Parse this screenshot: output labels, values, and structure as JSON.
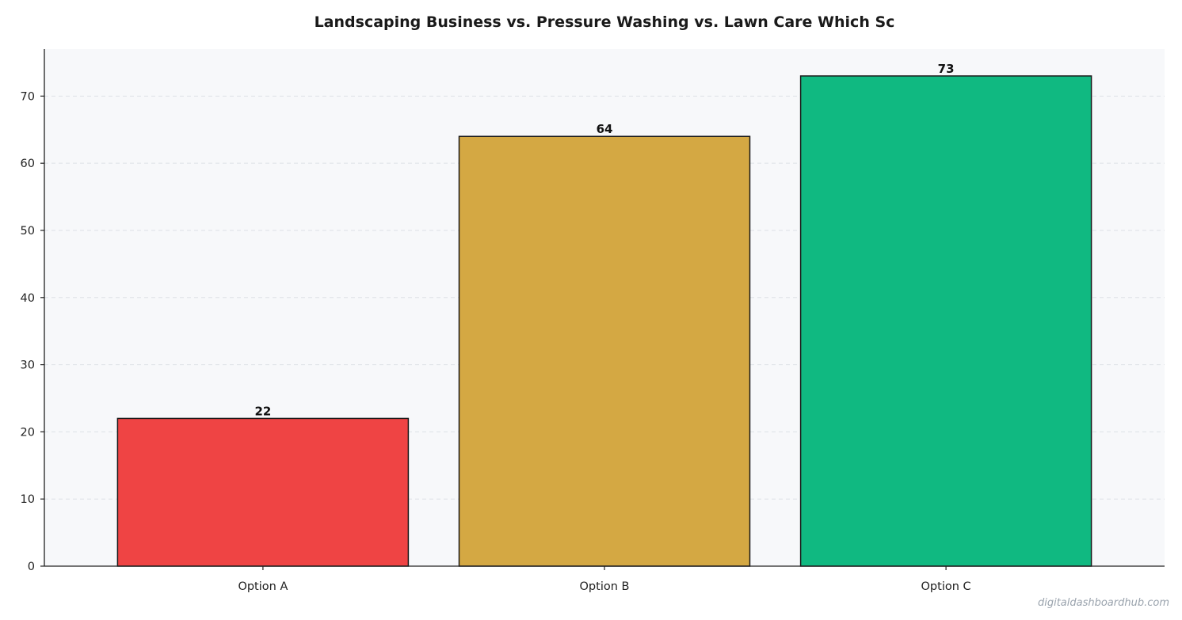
{
  "chart_data": {
    "type": "bar",
    "title": "Landscaping Business vs. Pressure Washing vs. Lawn Care  Which Sc",
    "xlabel": "",
    "ylabel": "",
    "categories": [
      "Option A",
      "Option B",
      "Option C"
    ],
    "values": [
      22,
      64,
      73
    ],
    "value_labels": [
      "22",
      "64",
      "73"
    ],
    "ylim": [
      0,
      77
    ],
    "yticks": [
      0,
      10,
      20,
      30,
      40,
      50,
      60,
      70
    ],
    "grid": "horizontal dashed",
    "legend": "none",
    "colors": {
      "bars": [
        "#ef4444",
        "#d4a843",
        "#10b981"
      ],
      "bar_edge": "#1a1a1a",
      "plot_background": "#f7f8fa",
      "grid": "#dde1e6",
      "axis": "#222222"
    }
  },
  "watermark": "digitaldashboardhub.com"
}
